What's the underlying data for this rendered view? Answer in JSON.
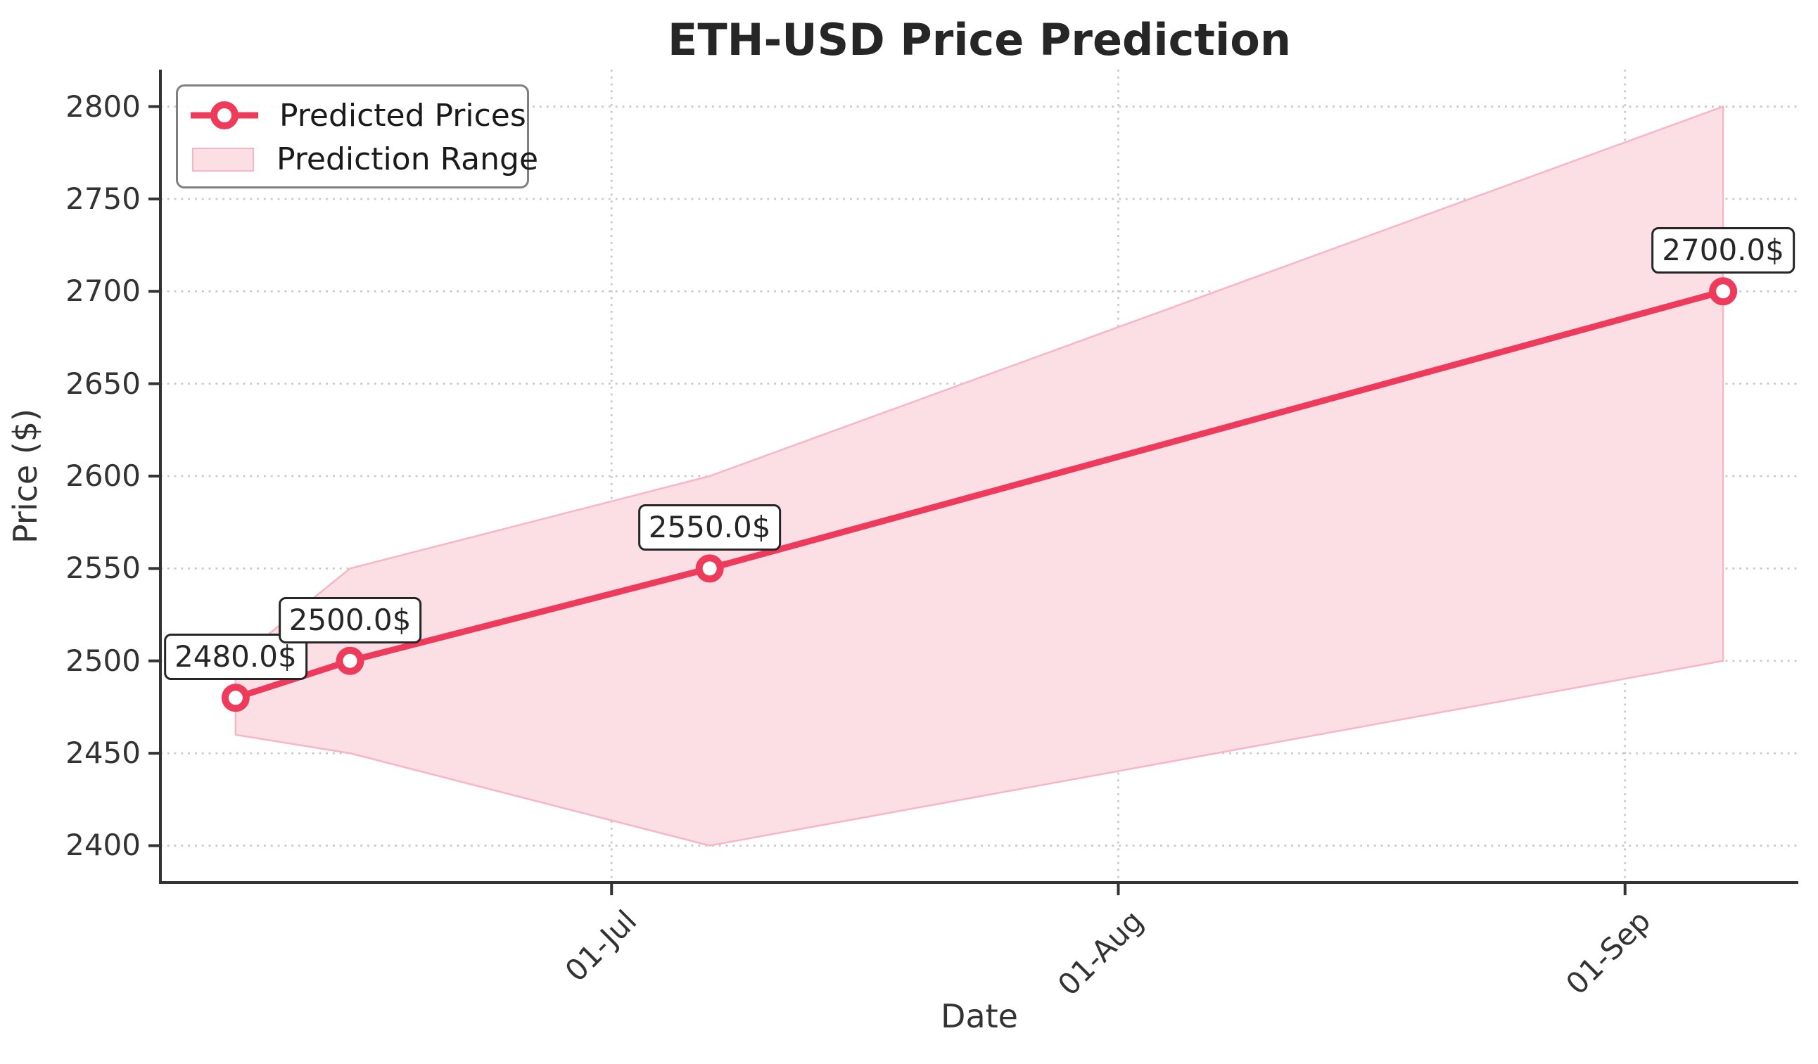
{
  "title": "ETH-USD Price Prediction",
  "axes": {
    "x_label": "Date",
    "y_label": "Price ($)"
  },
  "legend": {
    "position": "upper left",
    "items": [
      {
        "label": "Predicted Prices",
        "marker": "line-circle-icon"
      },
      {
        "label": "Prediction Range",
        "marker": "patch-icon"
      }
    ]
  },
  "colors": {
    "line": "#ee3b5c",
    "marker_face": "#ffffff",
    "band_fill": "#fcdee5",
    "band_edge": "#f7b6c5",
    "grid": "#c9c9c9",
    "axis": "#333333",
    "text": "#333333",
    "title_text": "#262626",
    "legend_border": "#7f7f7f",
    "annotation_border": "#262626",
    "annotation_bg": "#ffffff"
  },
  "chart_data": {
    "type": "line",
    "title": "ETH-USD Price Prediction",
    "xlabel": "Date",
    "ylabel": "Price ($)",
    "x_days_from_jun1": [
      7,
      14,
      36,
      98
    ],
    "series": [
      {
        "name": "Predicted Prices",
        "values": [
          2480,
          2500,
          2550,
          2700
        ],
        "point_labels": [
          "2480.0$",
          "2500.0$",
          "2550.0$",
          "2700.0$"
        ]
      }
    ],
    "band": {
      "name": "Prediction Range",
      "upper": [
        2500,
        2550,
        2600,
        2800
      ],
      "lower": [
        2460,
        2450,
        2400,
        2500
      ]
    },
    "x_ticks": {
      "days": [
        30,
        61,
        92
      ],
      "labels": [
        "01-Jul",
        "01-Aug",
        "01-Sep"
      ]
    },
    "y_ticks": {
      "values": [
        2400,
        2450,
        2500,
        2550,
        2600,
        2650,
        2700,
        2750,
        2800
      ],
      "labels": [
        "2400",
        "2450",
        "2500",
        "2550",
        "2600",
        "2650",
        "2700",
        "2750",
        "2800"
      ]
    },
    "ylim": [
      2380,
      2820
    ],
    "xlim_days": [
      2.4,
      102.6
    ],
    "grid": true,
    "legend_position": "upper left"
  }
}
